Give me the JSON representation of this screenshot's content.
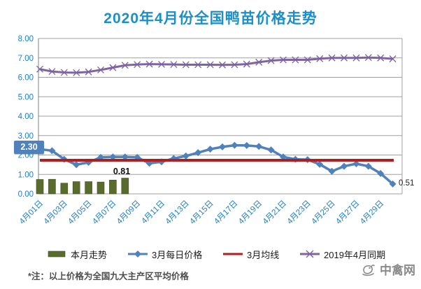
{
  "chart_data": {
    "type": "mixed",
    "title": "2020年4月份全国鸭苗价格走势",
    "ylim": [
      0,
      8
    ],
    "ytick_labels": [
      "0.00",
      "1.00",
      "2.00",
      "3.00",
      "4.00",
      "5.00",
      "6.00",
      "7.00",
      "8.00"
    ],
    "x_slots": 30,
    "x_tick_labels": [
      "4月01日",
      "4月03日",
      "4月05日",
      "4月07日",
      "4月09日",
      "4月11日",
      "4月13日",
      "4月15日",
      "4月17日",
      "4月19日",
      "4月21日",
      "4月23日",
      "4月25日",
      "4月27日",
      "4月29日"
    ],
    "x_tick_slot_step": 2,
    "grid": true,
    "legend_position": "bottom",
    "series": [
      {
        "name": "本月走势",
        "type": "bar",
        "color": "#5a6b2e",
        "edge_color": "#42511f",
        "start_slot": 0,
        "values": [
          0.74,
          0.75,
          0.55,
          0.63,
          0.63,
          0.61,
          0.71,
          0.81
        ]
      },
      {
        "name": "3月每日价格",
        "type": "line",
        "marker": "diamond",
        "color": "#4f81bd",
        "values": [
          2.3,
          2.22,
          1.78,
          1.5,
          1.62,
          1.88,
          1.9,
          1.9,
          1.88,
          1.57,
          1.65,
          1.82,
          1.95,
          2.12,
          2.3,
          2.42,
          2.5,
          2.49,
          2.44,
          2.26,
          1.9,
          1.78,
          1.76,
          1.52,
          1.16,
          1.42,
          1.55,
          1.42,
          1.05,
          0.51
        ]
      },
      {
        "name": "3月均线",
        "type": "hline",
        "color": "#b01f1f",
        "value": 1.73
      },
      {
        "name": "2019年4月同期",
        "type": "line",
        "marker": "x",
        "color": "#8064a2",
        "values": [
          6.42,
          6.3,
          6.25,
          6.24,
          6.28,
          6.38,
          6.5,
          6.62,
          6.66,
          6.68,
          6.67,
          6.66,
          6.65,
          6.65,
          6.65,
          6.64,
          6.65,
          6.68,
          6.78,
          6.86,
          6.9,
          6.9,
          6.9,
          6.96,
          7.0,
          7.0,
          7.0,
          7.02,
          7.0,
          6.95
        ]
      }
    ],
    "annotations": {
      "first_point": {
        "text": "2.30",
        "series": "3月每日价格"
      },
      "bar_last": {
        "text": "0.81",
        "series": "本月走势"
      },
      "last_point": {
        "text": "0.51",
        "series": "3月每日价格"
      }
    },
    "colors": {
      "title": "#1b8fca",
      "axis_labels": "#1f7ec2",
      "gridline": "#a0a0a0",
      "axis_line": "#808080"
    }
  },
  "note": "*注：以上价格为全国九大主产区平均价格",
  "logo": {
    "text": "中禽网"
  }
}
